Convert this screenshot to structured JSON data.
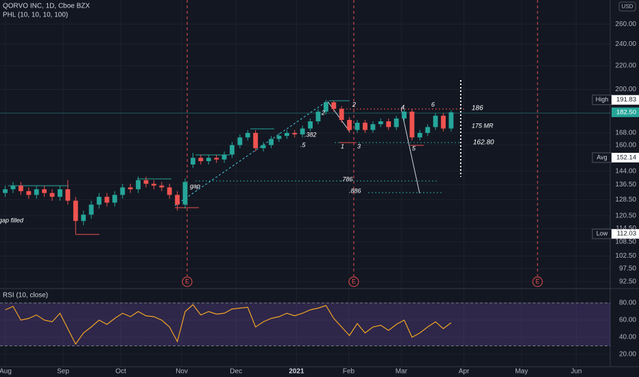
{
  "chart_data": [
    {
      "type": "candlestick",
      "title": "QORVO INC, 1D, Cboe BZX",
      "subtitle": "PHL (10, 10, 10, 100)",
      "currency": "USD",
      "log": true,
      "grid": true,
      "up_color": "#26a69a",
      "down_color": "#ef5350",
      "x": [
        0,
        3,
        6,
        9,
        12,
        15,
        18,
        21,
        24,
        27,
        30,
        33,
        36,
        39,
        42,
        45,
        48,
        51,
        54,
        57,
        60,
        63,
        66,
        69,
        72,
        75,
        78,
        81,
        84,
        87,
        90,
        93,
        96,
        99,
        102,
        105,
        108,
        111,
        114,
        117,
        120,
        123,
        126,
        129,
        132,
        135,
        138,
        141,
        144,
        147,
        150,
        153,
        156,
        159,
        162,
        165,
        168,
        171
      ],
      "open": [
        132,
        134,
        136,
        133,
        131,
        134,
        132,
        130,
        134,
        128,
        118,
        121,
        126,
        130,
        127,
        131,
        135,
        134,
        139,
        137,
        136,
        135,
        131,
        126,
        148,
        152,
        150,
        152,
        151,
        154,
        160,
        165,
        168,
        158,
        160,
        164,
        166,
        168,
        167,
        171,
        176,
        183,
        190,
        185,
        177,
        170,
        175,
        170,
        174,
        176,
        172,
        178,
        183,
        165,
        168,
        172,
        180,
        171
      ],
      "high": [
        136,
        138,
        138,
        135,
        136,
        136,
        134,
        136,
        139,
        130,
        123,
        128,
        132,
        132,
        133,
        137,
        137,
        141,
        141,
        139,
        138,
        137,
        133,
        140,
        155,
        154,
        154,
        154,
        156,
        162,
        167,
        170,
        170,
        162,
        166,
        168,
        170,
        170,
        173,
        178,
        185,
        191.83,
        191,
        187,
        179,
        177,
        177,
        176,
        178,
        178,
        180,
        185,
        185,
        170,
        174,
        182,
        182,
        184
      ],
      "low": [
        130,
        132,
        131,
        129,
        129,
        130,
        128,
        128,
        126,
        112.03,
        116,
        119,
        124,
        125,
        125,
        129,
        132,
        132,
        135,
        134,
        133,
        129,
        123,
        124,
        146,
        148,
        148,
        149,
        149,
        152,
        158,
        163,
        156,
        156,
        158,
        162,
        164,
        165,
        165,
        169,
        174,
        181,
        183,
        175,
        168,
        168,
        168,
        168,
        172,
        170,
        170,
        176,
        163,
        163,
        166,
        170,
        169,
        169
      ],
      "close": [
        134,
        136,
        133,
        131,
        134,
        132,
        130,
        134,
        128,
        118,
        121,
        126,
        130,
        127,
        131,
        135,
        134,
        139,
        137,
        136,
        135,
        131,
        126,
        138,
        152,
        150,
        152,
        151,
        154,
        160,
        165,
        168,
        158,
        160,
        164,
        166,
        168,
        167,
        171,
        176,
        183,
        190,
        185,
        177,
        170,
        175,
        170,
        174,
        176,
        172,
        178,
        183,
        165,
        168,
        172,
        180,
        171,
        182.5
      ],
      "xlim": [
        -2,
        232
      ],
      "xticks": [
        {
          "value": 0.1,
          "label": "Aug"
        },
        {
          "value": 22.2,
          "label": "Sep"
        },
        {
          "value": 44.3,
          "label": "Oct"
        },
        {
          "value": 67.7,
          "label": "Nov"
        },
        {
          "value": 88.5,
          "label": "Dec"
        },
        {
          "value": 111.7,
          "label": "2021"
        },
        {
          "value": 131.7,
          "label": "Feb"
        },
        {
          "value": 151.9,
          "label": "Mar"
        },
        {
          "value": 175.9,
          "label": "Apr"
        },
        {
          "value": 198,
          "label": "May"
        },
        {
          "value": 219,
          "label": "Jun"
        }
      ],
      "ylim": [
        90.2,
        286.4
      ],
      "yticks": [
        {
          "value": 260,
          "label": "260.00"
        },
        {
          "value": 240,
          "label": "240.00"
        },
        {
          "value": 220,
          "label": "220.00"
        },
        {
          "value": 200,
          "label": "200.00"
        },
        {
          "value": 168,
          "label": "168.00"
        },
        {
          "value": 160,
          "label": "160.00"
        },
        {
          "value": 144,
          "label": "144.00"
        },
        {
          "value": 136.5,
          "label": "136.50"
        },
        {
          "value": 128.5,
          "label": "128.50"
        },
        {
          "value": 120.5,
          "label": "120.50"
        },
        {
          "value": 114.5,
          "label": "114.50"
        },
        {
          "value": 108.5,
          "label": "108.50"
        },
        {
          "value": 102.5,
          "label": "102.50"
        },
        {
          "value": 97.5,
          "label": "97.50"
        },
        {
          "value": 92.5,
          "label": "92.50"
        }
      ],
      "price_tags": [
        {
          "name": "High",
          "value": 191.83,
          "color": "#ffffff"
        },
        {
          "value": 182.5,
          "value_label": "182.50",
          "color": "#26a69a"
        },
        {
          "name": "Avg",
          "value": 152.14,
          "color": "#ffffff"
        },
        {
          "name": "Low",
          "value": 112.03,
          "color": "#ffffff"
        }
      ],
      "event_label": "E",
      "annotations": [
        "gap filled",
        "gap",
        ".382",
        ".5",
        ".786",
        ".886",
        "186",
        "175 MR",
        "162.80",
        "1",
        "2",
        "3",
        "4",
        "5",
        "6",
        "2"
      ]
    },
    {
      "type": "line",
      "title": "RSI (10, close)",
      "color": "#f5a623",
      "x": [
        0,
        3,
        6,
        9,
        12,
        15,
        18,
        21,
        24,
        27,
        30,
        33,
        36,
        39,
        42,
        45,
        48,
        51,
        54,
        57,
        60,
        63,
        66,
        69,
        72,
        75,
        78,
        81,
        84,
        87,
        90,
        93,
        96,
        99,
        102,
        105,
        108,
        111,
        114,
        117,
        120,
        123,
        126,
        129,
        132,
        135,
        138,
        141,
        144,
        147,
        150,
        153,
        156,
        159,
        162,
        165,
        168,
        171
      ],
      "values": [
        72,
        76,
        60,
        62,
        66,
        60,
        58,
        68,
        50,
        32,
        45,
        52,
        60,
        55,
        62,
        68,
        64,
        70,
        65,
        64,
        60,
        52,
        35,
        70,
        78,
        66,
        70,
        67,
        68,
        73,
        74,
        75,
        52,
        58,
        62,
        64,
        68,
        65,
        68,
        72,
        74,
        77,
        62,
        52,
        42,
        56,
        45,
        52,
        54,
        48,
        55,
        60,
        40,
        45,
        52,
        58,
        50,
        57
      ],
      "bands": [
        30,
        80
      ],
      "band_color": "#7e57c2",
      "ylim": [
        5.6,
        96
      ],
      "yticks": [
        {
          "value": 80,
          "label": "80.00"
        },
        {
          "value": 60,
          "label": "60.00"
        },
        {
          "value": 40,
          "label": "40.00"
        },
        {
          "value": 20,
          "label": "20.00"
        }
      ]
    }
  ]
}
